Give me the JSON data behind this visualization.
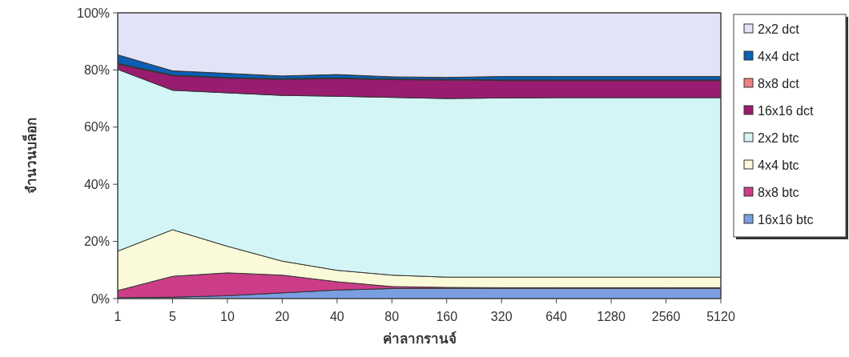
{
  "chart_data": {
    "type": "area",
    "stacked": true,
    "xlabel": "ค่าลากรานจ์",
    "ylabel": "จำนวนบล็อก",
    "categories": [
      "1",
      "5",
      "10",
      "20",
      "40",
      "80",
      "160",
      "320",
      "640",
      "1280",
      "2560",
      "5120"
    ],
    "ylim": [
      0,
      100
    ],
    "yticks": [
      {
        "value": 0,
        "label": "0%"
      },
      {
        "value": 20,
        "label": "20%"
      },
      {
        "value": 40,
        "label": "40%"
      },
      {
        "value": 60,
        "label": "60%"
      },
      {
        "value": 80,
        "label": "80%"
      },
      {
        "value": 100,
        "label": "100%"
      }
    ],
    "grid": false,
    "legend": "right",
    "series": [
      {
        "name": "16x16 btc",
        "color": "#7a9ee0",
        "values": [
          0.3,
          0.5,
          1,
          2,
          3,
          3.5,
          3.6,
          3.6,
          3.6,
          3.6,
          3.6,
          3.6
        ]
      },
      {
        "name": "8x8 btc",
        "color": "#cc3d88",
        "values": [
          2.5,
          7.3,
          8,
          6.2,
          2.9,
          0.7,
          0.3,
          0.2,
          0.2,
          0.2,
          0.2,
          0.2
        ]
      },
      {
        "name": "4x4 btc",
        "color": "#fafad9",
        "values": [
          13.8,
          16.3,
          9.3,
          4.9,
          4,
          4,
          3.6,
          3.7,
          3.7,
          3.7,
          3.7,
          3.7
        ]
      },
      {
        "name": "2x2 btc",
        "color": "#d4f5f5",
        "values": [
          63.6,
          48.8,
          53.7,
          58,
          60.9,
          62.2,
          62.5,
          62.7,
          62.8,
          62.8,
          62.8,
          62.8
        ]
      },
      {
        "name": "16x16 dct",
        "color": "#991c70",
        "values": [
          1.8,
          5.1,
          5.1,
          5.6,
          6.2,
          6.2,
          6.5,
          6.1,
          6,
          6,
          6,
          6
        ]
      },
      {
        "name": "8x8 dct",
        "color": "#f08080",
        "values": [
          0.3,
          0.2,
          0.2,
          0.2,
          0.2,
          0.2,
          0.2,
          0.2,
          0.2,
          0.2,
          0.2,
          0.2
        ]
      },
      {
        "name": "4x4 dct",
        "color": "#0b5fb5",
        "values": [
          3,
          1.5,
          1.5,
          1,
          1.2,
          0.8,
          0.7,
          1.2,
          1.2,
          1.2,
          1.2,
          1.2
        ]
      },
      {
        "name": "2x2 dct",
        "color": "#e3e3f7",
        "values": [
          14.7,
          20.3,
          21.2,
          22.1,
          21.6,
          22.4,
          22.6,
          22.3,
          22.3,
          22.3,
          22.3,
          22.3
        ]
      }
    ]
  }
}
